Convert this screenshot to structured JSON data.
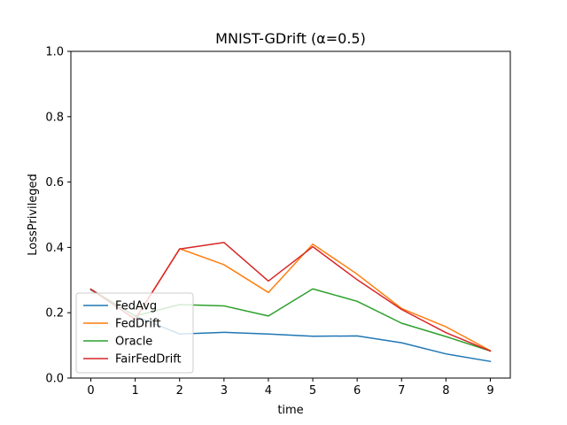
{
  "chart_data": {
    "type": "line",
    "title": "MNIST-GDrift (α=0.5)",
    "xlabel": "time",
    "ylabel": "LossPrivileged",
    "x": [
      0,
      1,
      2,
      3,
      4,
      5,
      6,
      7,
      8,
      9
    ],
    "xlim": [
      -0.45,
      9.45
    ],
    "ylim": [
      0,
      1
    ],
    "xticks": [
      "0",
      "1",
      "2",
      "3",
      "4",
      "5",
      "6",
      "7",
      "8",
      "9"
    ],
    "yticks": [
      "0.0",
      "0.2",
      "0.4",
      "0.6",
      "0.8",
      "1.0"
    ],
    "grid": false,
    "legend_position": "lower-left",
    "series": [
      {
        "name": "FedAvg",
        "color": "#1f77b4",
        "values": [
          0.27,
          0.19,
          0.135,
          0.14,
          0.135,
          0.128,
          0.129,
          0.108,
          0.074,
          0.051
        ]
      },
      {
        "name": "FedDrift",
        "color": "#ff7f0e",
        "values": [
          0.272,
          0.18,
          0.396,
          0.347,
          0.262,
          0.41,
          0.318,
          0.213,
          0.157,
          0.084
        ]
      },
      {
        "name": "Oracle",
        "color": "#2ca02c",
        "values": [
          0.272,
          0.19,
          0.225,
          0.221,
          0.19,
          0.273,
          0.235,
          0.168,
          0.127,
          0.083
        ]
      },
      {
        "name": "FairFedDrift",
        "color": "#d62728",
        "values": [
          0.272,
          0.18,
          0.395,
          0.415,
          0.297,
          0.402,
          0.301,
          0.21,
          0.139,
          0.083
        ]
      }
    ]
  }
}
